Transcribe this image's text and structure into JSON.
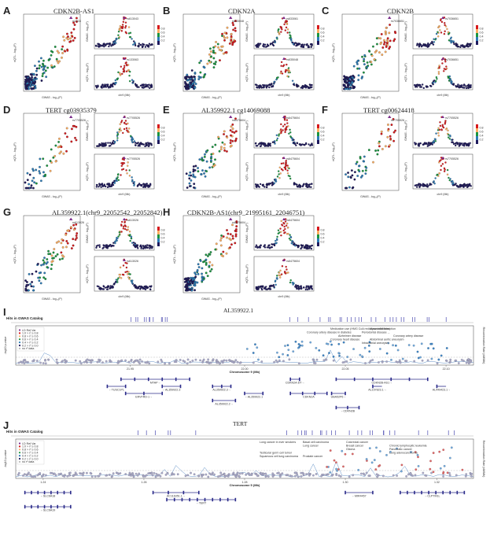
{
  "panels": [
    {
      "id": "A",
      "title": "CDKN2B-AS1",
      "snp": "rs1333",
      "snp2": "rs613043",
      "snp3": "rs133063"
    },
    {
      "id": "B",
      "title": "CDKN2A",
      "snp": "rs635048",
      "snp2": "rs633061",
      "snp3": "rs635048"
    },
    {
      "id": "C",
      "title": "CDKN2B",
      "snp": "rs7036651",
      "snp2": "rs7036651",
      "snp3": "rs7036651"
    },
    {
      "id": "D",
      "title": "TERT cg03935379",
      "snp": "rs7705526",
      "snp2": "rs7705526",
      "snp3": "rs7705526"
    },
    {
      "id": "E",
      "title": "AL359922.1 cg14069088",
      "snp": "rs6475604",
      "snp2": "rs6475604",
      "snp3": "rs6475604"
    },
    {
      "id": "F",
      "title": "TERT cg00624418",
      "snp": "rs7705526",
      "snp2": "rs7705526",
      "snp3": "rs7705526"
    },
    {
      "id": "G",
      "title": "AL359922.1(chr9_22052542_22052842)",
      "snp": "rs613026",
      "snp2": "rs613026",
      "snp3": "rs613026"
    },
    {
      "id": "H",
      "title": "CDKN2B-AS1(chr9_21995161_22046751)",
      "snp": "rs6475604",
      "snp2": "rs6475604",
      "snp3": "rs6475604"
    }
  ],
  "axis_labels": {
    "gwas_x": "GWAS - log₁₀(P)",
    "eqtl_y": "eQTL - log₁₀(P)",
    "gwas_y": "GWAS - log₁₀(P)",
    "chr9": "chr9 (Mb)",
    "chr5": "chr5 (Mb)"
  },
  "r2_legend": [
    "0.8",
    "0.6",
    "0.4",
    "0.2"
  ],
  "panel_I": {
    "label": "I",
    "title": "AL359922.1",
    "hits": "Hits in GWAS Catalog",
    "xlabel": "Chromosome 9 (Mb)",
    "ylabel": "-log10 p-value",
    "ylabel2": "Recombination Rate (cM/Mb)",
    "xticks": [
      "21.95",
      "22.00",
      "22.05",
      "22.10"
    ],
    "legend": [
      "LD Ref Var",
      "1.0 > r² ≥ 0.8",
      "0.8 > r² ≥ 0.6",
      "0.6 > r² ≥ 0.4",
      "0.4 > r² ≥ 0.2",
      "0.2 > r² ≥ 0.0",
      "no r² data"
    ],
    "annotations": [
      "Medication use (HMG CoA reductase inhibitors)",
      "Periodontal disease ...",
      "Coronary artery disease",
      "Coronary heart disease",
      "Intracranial aneurysm",
      "Myocardial infarction",
      "Coronary artery disease in diabetes",
      "Alzheimer disease",
      "Abdominal aortic aneurysm"
    ],
    "genes": [
      "MTAP→",
      "CDKN2A-DT→",
      "CDKN2B-AS1→",
      "←TUSC1P1",
      "←AL359922.3",
      "AL359922.3→",
      "ERVFRD-1→",
      "←AL359922.1",
      "CDKN2A",
      "UBA52P6→",
      "AL359922.2→",
      "AL157823.1→",
      "AL449423.1→",
      "←CDKN2B"
    ]
  },
  "panel_J": {
    "label": "J",
    "title": "TERT",
    "hits": "Hits in GWAS Catalog",
    "xlabel": "Chromosome 5 (Mb)",
    "ylabel": "-log10 p-value",
    "ylabel2": "Recombination Rate (cM/Mb)",
    "xticks": [
      "1.24",
      "1.26",
      "1.28",
      "1.30",
      "1.32"
    ],
    "legend": [
      "LD Ref Var",
      "1.0 > r² ≥ 0.8",
      "0.8 > r² ≥ 0.6",
      "0.6 > r² ≥ 0.4",
      "0.4 > r² ≥ 0.2",
      "0.2 > r² ≥ 0.0",
      "no r² data"
    ],
    "annotations": [
      "Long cancer in ever smokers",
      "Lung cancer",
      "Glioma",
      "Lung adenocarcinoma",
      "Squamous cell lung carcinoma",
      "Basal cell carcinoma",
      "Breast cancer",
      "Pancreatic cancer",
      "Testicular germ cell tumor",
      "Prostate cancer",
      "Colorectal cancer",
      "Chronic lymphocytic leukemia"
    ],
    "genes": [
      "←SLC6A18",
      "←SLC6A19",
      "AC116351.1→",
      "←TERT",
      "←MIR4457",
      "←CLPTM1L"
    ]
  },
  "colors": {
    "r08": "#d7191c",
    "r06": "#fdae61",
    "r04": "#1a9641",
    "r02": "#2c7bb6",
    "r00": "#1f1a5e",
    "ref": "#7b2d8b",
    "gene": "#2b2b8a"
  },
  "chart_data": [
    {
      "type": "scatter",
      "panel": "A",
      "title": "CDKN2B-AS1",
      "xlabel": "GWAS - log₁₀(P)",
      "ylabel": "eQTL - log₁₀(P)"
    },
    {
      "type": "scatter",
      "panel": "B",
      "title": "CDKN2A",
      "xlabel": "GWAS - log₁₀(P)",
      "ylabel": "eQTL - log₁₀(P)"
    },
    {
      "type": "scatter",
      "panel": "C",
      "title": "CDKN2B",
      "xlabel": "GWAS - log₁₀(P)",
      "ylabel": "eQTL - log₁₀(P)"
    },
    {
      "type": "scatter",
      "panel": "D",
      "title": "TERT cg03935379",
      "xlabel": "GWAS - log₁₀(P)",
      "ylabel": "eQTL - log₁₀(P)"
    },
    {
      "type": "scatter",
      "panel": "E",
      "title": "AL359922.1 cg14069088",
      "xlabel": "GWAS - log₁₀(P)",
      "ylabel": "eQTL - log₁₀(P)"
    },
    {
      "type": "scatter",
      "panel": "F",
      "title": "TERT cg00624418",
      "xlabel": "GWAS - log₁₀(P)",
      "ylabel": "eQTL - log₁₀(P)"
    },
    {
      "type": "scatter",
      "panel": "G",
      "title": "AL359922.1(chr9_22052542_22052842)",
      "xlabel": "GWAS - log₁₀(P)",
      "ylabel": "eQTL - log₁₀(P)"
    },
    {
      "type": "scatter",
      "panel": "H",
      "title": "CDKN2B-AS1(chr9_21995161_22046751)",
      "xlabel": "GWAS - log₁₀(P)",
      "ylabel": "eQTL - log₁₀(P)"
    },
    {
      "type": "scatter",
      "panel": "I",
      "title": "AL359922.1",
      "xlabel": "Chromosome 9 (Mb)",
      "ylabel": "-log10 p-value",
      "xlim": [
        21.9,
        22.15
      ]
    },
    {
      "type": "scatter",
      "panel": "J",
      "title": "TERT",
      "xlabel": "Chromosome 5 (Mb)",
      "ylabel": "-log10 p-value",
      "xlim": [
        1.23,
        1.34
      ]
    }
  ]
}
